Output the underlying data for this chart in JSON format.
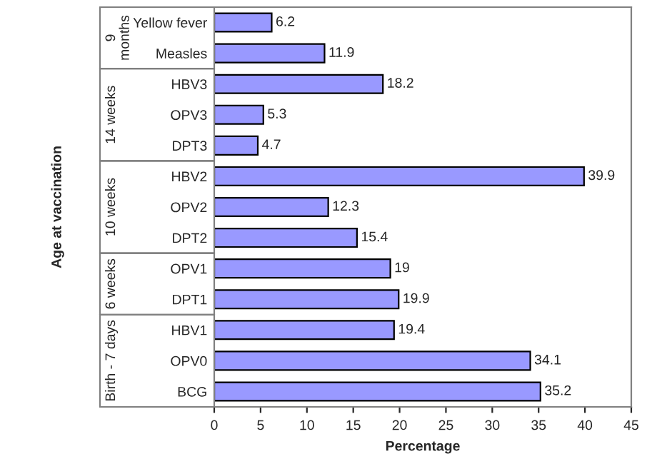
{
  "chart_data": {
    "type": "bar",
    "orientation": "horizontal",
    "categories": [
      "Yellow fever",
      "Measles",
      "HBV3",
      "OPV3",
      "DPT3",
      "HBV2",
      "OPV2",
      "DPT2",
      "OPV1",
      "DPT1",
      "HBV1",
      "OPV0",
      "BCG"
    ],
    "values": [
      6.2,
      11.9,
      18.2,
      5.3,
      4.7,
      39.9,
      12.3,
      15.4,
      19,
      19.9,
      19.4,
      34.1,
      35.2
    ],
    "color": "#9999ff",
    "xlim": [
      0,
      45
    ],
    "xticks": [
      0,
      5,
      10,
      15,
      20,
      25,
      30,
      35,
      40,
      45
    ],
    "xlabel": "Percentage",
    "ylabel": "Age at vaccination",
    "data_labels": true,
    "grid": false,
    "annotations": [
      "9 months",
      "14 weeks",
      "10 weeks",
      "6 weeks",
      "Birth - 7 days"
    ]
  }
}
